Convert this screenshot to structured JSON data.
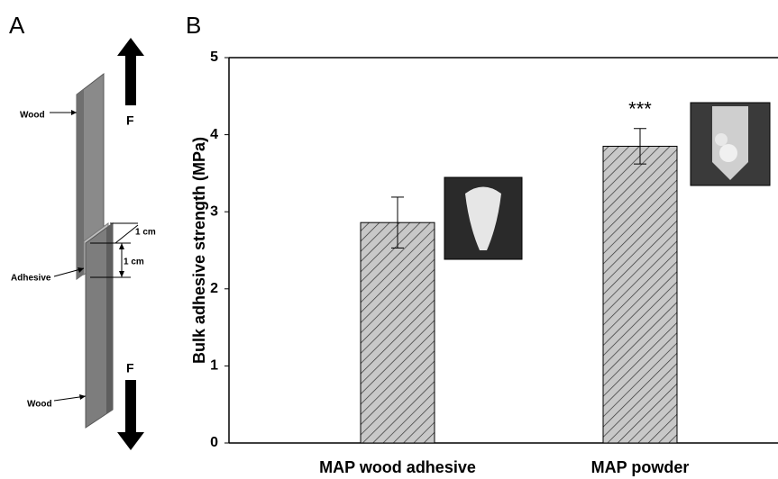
{
  "panel_labels": [
    "A",
    "B"
  ],
  "diagram": {
    "upper_label": "Wood",
    "lower_label": "Wood",
    "adhesive_label": "Adhesive",
    "width_label": "1 cm",
    "overlap_label": "1 cm",
    "force_top": "F",
    "force_bottom": "F"
  },
  "chart_data": {
    "type": "bar",
    "categories": [
      "MAP wood adhesive",
      "MAP powder"
    ],
    "values": [
      2.86,
      3.85
    ],
    "errors": [
      0.33,
      0.23
    ],
    "y_label": "Bulk adhesive strength (MPa)",
    "annotation": "***",
    "hatch": true,
    "color": "#c8c8c8",
    "ylim": [
      0,
      5
    ],
    "yticks": [
      0,
      1,
      2,
      3,
      4,
      5
    ]
  }
}
